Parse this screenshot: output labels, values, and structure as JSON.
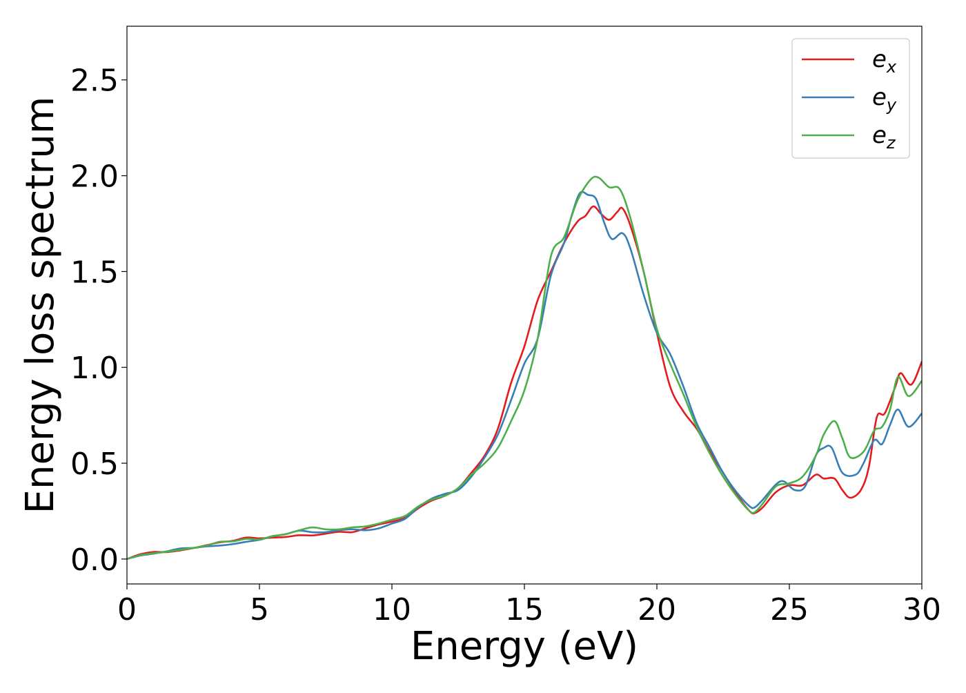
{
  "chart_data": {
    "type": "line",
    "title": "",
    "xlabel": "Energy (eV)",
    "ylabel": "Energy loss spectrum",
    "xlim": [
      0,
      30
    ],
    "ylim": [
      -0.13,
      2.78
    ],
    "xticks": [
      0,
      5,
      10,
      15,
      20,
      25,
      30
    ],
    "yticks": [
      0.0,
      0.5,
      1.0,
      1.5,
      2.0,
      2.5
    ],
    "xtick_labels": [
      "0",
      "5",
      "10",
      "15",
      "20",
      "25",
      "30"
    ],
    "ytick_labels": [
      "0.0",
      "0.5",
      "1.0",
      "1.5",
      "2.0",
      "2.5"
    ],
    "grid": false,
    "legend_position": "top-right",
    "series": [
      {
        "name": "e_x",
        "label_base": "e",
        "label_sub": "x",
        "color": "#e41a1c",
        "points": [
          [
            0,
            0
          ],
          [
            0.5,
            0.025
          ],
          [
            1,
            0.037
          ],
          [
            1.5,
            0.036
          ],
          [
            2,
            0.045
          ],
          [
            2.5,
            0.057
          ],
          [
            3,
            0.072
          ],
          [
            3.5,
            0.087
          ],
          [
            4,
            0.095
          ],
          [
            4.5,
            0.112
          ],
          [
            5,
            0.108
          ],
          [
            5.5,
            0.112
          ],
          [
            6,
            0.115
          ],
          [
            6.5,
            0.124
          ],
          [
            7,
            0.123
          ],
          [
            7.5,
            0.132
          ],
          [
            8,
            0.142
          ],
          [
            8.5,
            0.14
          ],
          [
            9,
            0.16
          ],
          [
            9.5,
            0.18
          ],
          [
            10,
            0.195
          ],
          [
            10.5,
            0.215
          ],
          [
            11,
            0.265
          ],
          [
            11.5,
            0.305
          ],
          [
            12,
            0.33
          ],
          [
            12.5,
            0.37
          ],
          [
            13,
            0.45
          ],
          [
            13.5,
            0.54
          ],
          [
            14,
            0.68
          ],
          [
            14.5,
            0.92
          ],
          [
            15,
            1.11
          ],
          [
            15.5,
            1.35
          ],
          [
            16,
            1.5
          ],
          [
            16.5,
            1.65
          ],
          [
            17,
            1.76
          ],
          [
            17.3,
            1.79
          ],
          [
            17.6,
            1.84
          ],
          [
            17.9,
            1.8
          ],
          [
            18.2,
            1.77
          ],
          [
            18.5,
            1.81
          ],
          [
            18.7,
            1.83
          ],
          [
            19,
            1.74
          ],
          [
            19.5,
            1.5
          ],
          [
            20,
            1.18
          ],
          [
            20.5,
            0.9
          ],
          [
            21,
            0.77
          ],
          [
            21.5,
            0.68
          ],
          [
            22,
            0.56
          ],
          [
            22.5,
            0.45
          ],
          [
            23,
            0.34
          ],
          [
            23.5,
            0.25
          ],
          [
            23.7,
            0.24
          ],
          [
            24,
            0.27
          ],
          [
            24.5,
            0.35
          ],
          [
            25,
            0.385
          ],
          [
            25.5,
            0.385
          ],
          [
            26,
            0.44
          ],
          [
            26.3,
            0.42
          ],
          [
            26.7,
            0.42
          ],
          [
            27,
            0.36
          ],
          [
            27.3,
            0.32
          ],
          [
            27.7,
            0.36
          ],
          [
            28,
            0.48
          ],
          [
            28.3,
            0.74
          ],
          [
            28.6,
            0.76
          ],
          [
            29,
            0.9
          ],
          [
            29.2,
            0.97
          ],
          [
            29.6,
            0.91
          ],
          [
            30,
            1.03
          ]
        ]
      },
      {
        "name": "e_y",
        "label_base": "e",
        "label_sub": "y",
        "color": "#377eb8",
        "points": [
          [
            0,
            0
          ],
          [
            0.5,
            0.018
          ],
          [
            1,
            0.028
          ],
          [
            1.5,
            0.04
          ],
          [
            2,
            0.055
          ],
          [
            2.5,
            0.058
          ],
          [
            3,
            0.066
          ],
          [
            3.5,
            0.07
          ],
          [
            4,
            0.078
          ],
          [
            4.5,
            0.09
          ],
          [
            5,
            0.1
          ],
          [
            5.5,
            0.118
          ],
          [
            6,
            0.13
          ],
          [
            6.5,
            0.148
          ],
          [
            7,
            0.14
          ],
          [
            7.5,
            0.14
          ],
          [
            8,
            0.15
          ],
          [
            8.5,
            0.155
          ],
          [
            9,
            0.15
          ],
          [
            9.5,
            0.16
          ],
          [
            10,
            0.185
          ],
          [
            10.5,
            0.21
          ],
          [
            11,
            0.27
          ],
          [
            11.5,
            0.315
          ],
          [
            12,
            0.34
          ],
          [
            12.5,
            0.36
          ],
          [
            13,
            0.43
          ],
          [
            13.5,
            0.53
          ],
          [
            14,
            0.65
          ],
          [
            14.5,
            0.83
          ],
          [
            15,
            1.02
          ],
          [
            15.5,
            1.15
          ],
          [
            16,
            1.48
          ],
          [
            16.5,
            1.65
          ],
          [
            16.8,
            1.8
          ],
          [
            17.1,
            1.91
          ],
          [
            17.4,
            1.9
          ],
          [
            17.7,
            1.88
          ],
          [
            18,
            1.76
          ],
          [
            18.3,
            1.67
          ],
          [
            18.7,
            1.7
          ],
          [
            19,
            1.62
          ],
          [
            19.5,
            1.38
          ],
          [
            20,
            1.18
          ],
          [
            20.5,
            1.07
          ],
          [
            21,
            0.9
          ],
          [
            21.5,
            0.71
          ],
          [
            22,
            0.58
          ],
          [
            22.5,
            0.45
          ],
          [
            23,
            0.35
          ],
          [
            23.5,
            0.275
          ],
          [
            23.7,
            0.27
          ],
          [
            24,
            0.31
          ],
          [
            24.5,
            0.39
          ],
          [
            24.8,
            0.405
          ],
          [
            25.2,
            0.36
          ],
          [
            25.6,
            0.38
          ],
          [
            26,
            0.54
          ],
          [
            26.3,
            0.58
          ],
          [
            26.6,
            0.58
          ],
          [
            27,
            0.45
          ],
          [
            27.5,
            0.44
          ],
          [
            27.8,
            0.5
          ],
          [
            28.2,
            0.62
          ],
          [
            28.5,
            0.6
          ],
          [
            28.8,
            0.7
          ],
          [
            29.1,
            0.78
          ],
          [
            29.5,
            0.69
          ],
          [
            30,
            0.76
          ]
        ]
      },
      {
        "name": "e_z",
        "label_base": "e",
        "label_sub": "z",
        "color": "#4daf4a",
        "points": [
          [
            0,
            0
          ],
          [
            0.5,
            0.02
          ],
          [
            1,
            0.03
          ],
          [
            1.5,
            0.038
          ],
          [
            2,
            0.048
          ],
          [
            2.5,
            0.058
          ],
          [
            3,
            0.07
          ],
          [
            3.5,
            0.09
          ],
          [
            4,
            0.092
          ],
          [
            4.5,
            0.105
          ],
          [
            5,
            0.102
          ],
          [
            5.5,
            0.12
          ],
          [
            6,
            0.13
          ],
          [
            6.5,
            0.15
          ],
          [
            7,
            0.165
          ],
          [
            7.5,
            0.155
          ],
          [
            8,
            0.155
          ],
          [
            8.5,
            0.165
          ],
          [
            9,
            0.17
          ],
          [
            9.5,
            0.185
          ],
          [
            10,
            0.205
          ],
          [
            10.5,
            0.225
          ],
          [
            11,
            0.275
          ],
          [
            11.5,
            0.31
          ],
          [
            12,
            0.33
          ],
          [
            12.5,
            0.37
          ],
          [
            13,
            0.44
          ],
          [
            13.5,
            0.5
          ],
          [
            14,
            0.58
          ],
          [
            14.5,
            0.72
          ],
          [
            15,
            0.88
          ],
          [
            15.5,
            1.15
          ],
          [
            16,
            1.58
          ],
          [
            16.5,
            1.68
          ],
          [
            17,
            1.87
          ],
          [
            17.5,
            1.98
          ],
          [
            17.8,
            1.99
          ],
          [
            18.2,
            1.94
          ],
          [
            18.6,
            1.93
          ],
          [
            19,
            1.78
          ],
          [
            19.5,
            1.5
          ],
          [
            20,
            1.2
          ],
          [
            20.5,
            1.02
          ],
          [
            21,
            0.86
          ],
          [
            21.5,
            0.69
          ],
          [
            22,
            0.55
          ],
          [
            22.5,
            0.43
          ],
          [
            23,
            0.33
          ],
          [
            23.5,
            0.25
          ],
          [
            23.7,
            0.245
          ],
          [
            24,
            0.29
          ],
          [
            24.5,
            0.38
          ],
          [
            25,
            0.395
          ],
          [
            25.5,
            0.43
          ],
          [
            26,
            0.54
          ],
          [
            26.3,
            0.65
          ],
          [
            26.7,
            0.72
          ],
          [
            27,
            0.63
          ],
          [
            27.3,
            0.53
          ],
          [
            27.8,
            0.56
          ],
          [
            28.2,
            0.67
          ],
          [
            28.5,
            0.69
          ],
          [
            28.8,
            0.78
          ],
          [
            29.1,
            0.95
          ],
          [
            29.5,
            0.85
          ],
          [
            30,
            0.93
          ]
        ]
      }
    ]
  }
}
